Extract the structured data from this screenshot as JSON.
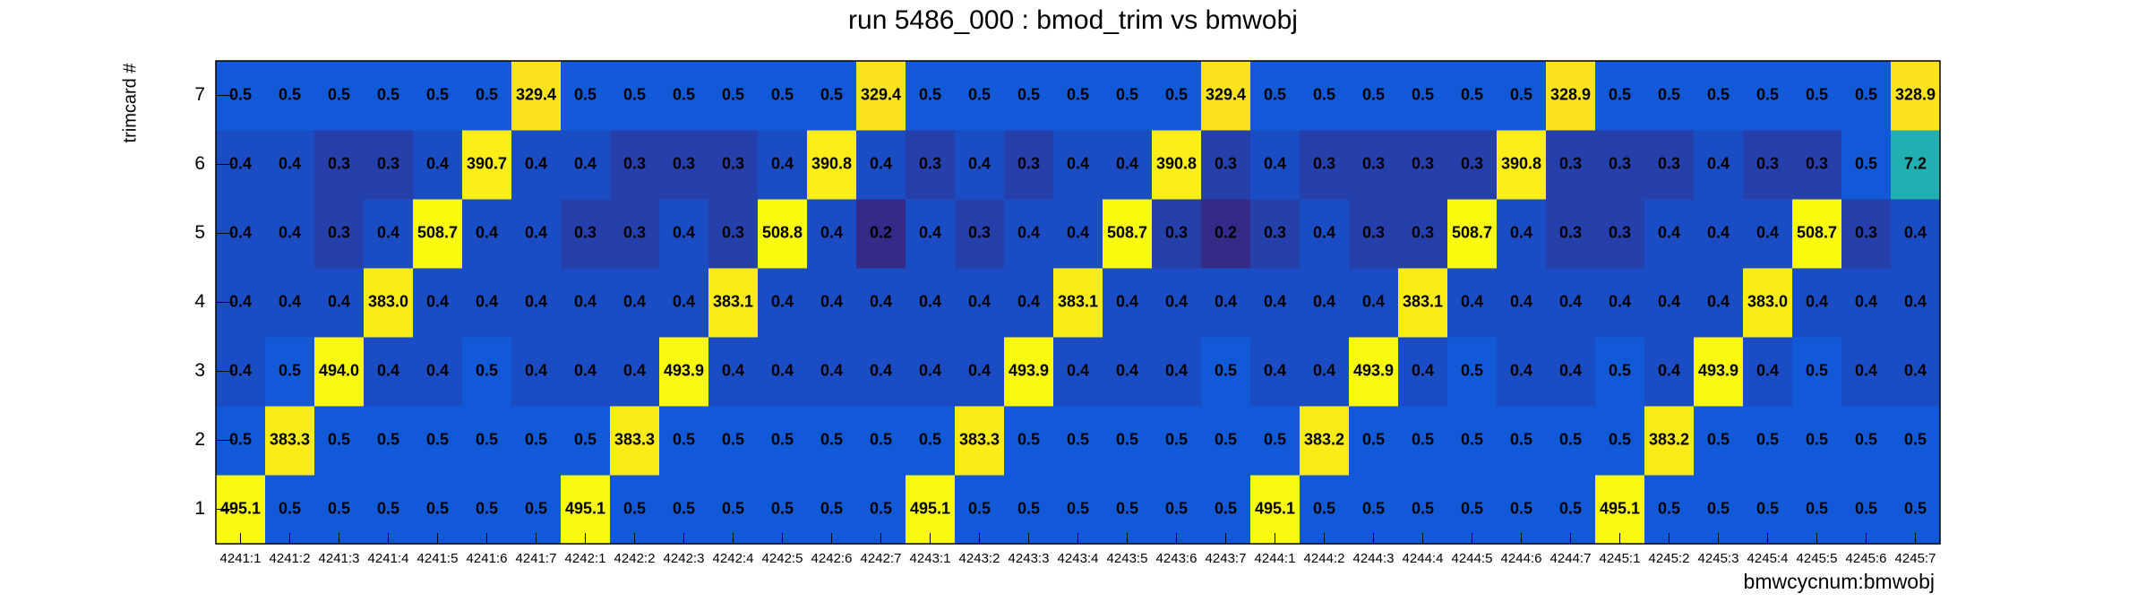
{
  "chart_data": {
    "type": "heatmap",
    "title": "run 5486_000 : bmod_trim vs bmwobj",
    "xlabel": "bmwcycnum:bmwobj",
    "ylabel": "trimcard #",
    "logz": true,
    "colormap": [
      "#352a87",
      "#0f5cdd",
      "#1481d4",
      "#06a4ca",
      "#2eb7a4",
      "#87bf77",
      "#d1bb59",
      "#fec832",
      "#f9fb0e"
    ],
    "categories": [
      "4241:1",
      "4241:2",
      "4241:3",
      "4241:4",
      "4241:5",
      "4241:6",
      "4241:7",
      "4242:1",
      "4242:2",
      "4242:3",
      "4242:4",
      "4242:5",
      "4242:6",
      "4242:7",
      "4243:1",
      "4243:2",
      "4243:3",
      "4243:4",
      "4243:5",
      "4243:6",
      "4243:7",
      "4244:1",
      "4244:2",
      "4244:3",
      "4244:4",
      "4244:5",
      "4244:6",
      "4244:7",
      "4245:1",
      "4245:2",
      "4245:3",
      "4245:4",
      "4245:5",
      "4245:6",
      "4245:7"
    ],
    "y": [
      1,
      2,
      3,
      4,
      5,
      6,
      7
    ],
    "values": [
      [
        495.1,
        0.5,
        0.5,
        0.5,
        0.5,
        0.5,
        0.5,
        495.1,
        0.5,
        0.5,
        0.5,
        0.5,
        0.5,
        0.5,
        495.1,
        0.5,
        0.5,
        0.5,
        0.5,
        0.5,
        0.5,
        495.1,
        0.5,
        0.5,
        0.5,
        0.5,
        0.5,
        0.5,
        495.1,
        0.5,
        0.5,
        0.5,
        0.5,
        0.5,
        0.5
      ],
      [
        0.5,
        383.3,
        0.5,
        0.5,
        0.5,
        0.5,
        0.5,
        0.5,
        383.3,
        0.5,
        0.5,
        0.5,
        0.5,
        0.5,
        0.5,
        383.3,
        0.5,
        0.5,
        0.5,
        0.5,
        0.5,
        0.5,
        383.2,
        0.5,
        0.5,
        0.5,
        0.5,
        0.5,
        0.5,
        383.2,
        0.5,
        0.5,
        0.5,
        0.5,
        0.5
      ],
      [
        0.4,
        0.5,
        494.0,
        0.4,
        0.4,
        0.5,
        0.4,
        0.4,
        0.4,
        493.9,
        0.4,
        0.4,
        0.4,
        0.4,
        0.4,
        0.4,
        493.9,
        0.4,
        0.4,
        0.4,
        0.5,
        0.4,
        0.4,
        493.9,
        0.4,
        0.5,
        0.4,
        0.4,
        0.5,
        0.4,
        493.9,
        0.4,
        0.5,
        0.4,
        0.4
      ],
      [
        0.4,
        0.4,
        0.4,
        383.0,
        0.4,
        0.4,
        0.4,
        0.4,
        0.4,
        0.4,
        383.1,
        0.4,
        0.4,
        0.4,
        0.4,
        0.4,
        0.4,
        383.1,
        0.4,
        0.4,
        0.4,
        0.4,
        0.4,
        0.4,
        383.1,
        0.4,
        0.4,
        0.4,
        0.4,
        0.4,
        0.4,
        383.0,
        0.4,
        0.4,
        0.4
      ],
      [
        0.4,
        0.4,
        0.3,
        0.4,
        508.7,
        0.4,
        0.4,
        0.3,
        0.3,
        0.4,
        0.3,
        508.8,
        0.4,
        0.2,
        0.4,
        0.3,
        0.4,
        0.4,
        508.7,
        0.3,
        0.2,
        0.3,
        0.4,
        0.3,
        0.3,
        508.7,
        0.4,
        0.3,
        0.3,
        0.4,
        0.4,
        0.4,
        508.7,
        0.3,
        0.4
      ],
      [
        0.4,
        0.4,
        0.3,
        0.3,
        0.4,
        390.7,
        0.4,
        0.4,
        0.3,
        0.3,
        0.3,
        0.4,
        390.8,
        0.4,
        0.3,
        0.4,
        0.3,
        0.4,
        0.4,
        390.8,
        0.3,
        0.4,
        0.3,
        0.3,
        0.3,
        0.3,
        390.8,
        0.3,
        0.3,
        0.3,
        0.4,
        0.3,
        0.3,
        0.5,
        7.2
      ],
      [
        0.5,
        0.5,
        0.5,
        0.5,
        0.5,
        0.5,
        329.4,
        0.5,
        0.5,
        0.5,
        0.5,
        0.5,
        0.5,
        329.4,
        0.5,
        0.5,
        0.5,
        0.5,
        0.5,
        0.5,
        329.4,
        0.5,
        0.5,
        0.5,
        0.5,
        0.5,
        0.5,
        328.9,
        0.5,
        0.5,
        0.5,
        0.5,
        0.5,
        0.5,
        328.9
      ]
    ],
    "value_labels": [
      [
        "495.1",
        "0.5",
        "0.5",
        "0.5",
        "0.5",
        "0.5",
        "0.5",
        "495.1",
        "0.5",
        "0.5",
        "0.5",
        "0.5",
        "0.5",
        "0.5",
        "495.1",
        "0.5",
        "0.5",
        "0.5",
        "0.5",
        "0.5",
        "0.5",
        "495.1",
        "0.5",
        "0.5",
        "0.5",
        "0.5",
        "0.5",
        "0.5",
        "495.1",
        "0.5",
        "0.5",
        "0.5",
        "0.5",
        "0.5",
        "0.5"
      ],
      [
        "0.5",
        "383.3",
        "0.5",
        "0.5",
        "0.5",
        "0.5",
        "0.5",
        "0.5",
        "383.3",
        "0.5",
        "0.5",
        "0.5",
        "0.5",
        "0.5",
        "0.5",
        "383.3",
        "0.5",
        "0.5",
        "0.5",
        "0.5",
        "0.5",
        "0.5",
        "383.2",
        "0.5",
        "0.5",
        "0.5",
        "0.5",
        "0.5",
        "0.5",
        "383.2",
        "0.5",
        "0.5",
        "0.5",
        "0.5",
        "0.5"
      ],
      [
        "0.4",
        "0.5",
        "494.0",
        "0.4",
        "0.4",
        "0.5",
        "0.4",
        "0.4",
        "0.4",
        "493.9",
        "0.4",
        "0.4",
        "0.4",
        "0.4",
        "0.4",
        "0.4",
        "493.9",
        "0.4",
        "0.4",
        "0.4",
        "0.5",
        "0.4",
        "0.4",
        "493.9",
        "0.4",
        "0.5",
        "0.4",
        "0.4",
        "0.5",
        "0.4",
        "493.9",
        "0.4",
        "0.5",
        "0.4",
        "0.4"
      ],
      [
        "0.4",
        "0.4",
        "0.4",
        "383.0",
        "0.4",
        "0.4",
        "0.4",
        "0.4",
        "0.4",
        "0.4",
        "383.1",
        "0.4",
        "0.4",
        "0.4",
        "0.4",
        "0.4",
        "0.4",
        "383.1",
        "0.4",
        "0.4",
        "0.4",
        "0.4",
        "0.4",
        "0.4",
        "383.1",
        "0.4",
        "0.4",
        "0.4",
        "0.4",
        "0.4",
        "0.4",
        "383.0",
        "0.4",
        "0.4",
        "0.4"
      ],
      [
        "0.4",
        "0.4",
        "0.3",
        "0.4",
        "508.7",
        "0.4",
        "0.4",
        "0.3",
        "0.3",
        "0.4",
        "0.3",
        "508.8",
        "0.4",
        "0.2",
        "0.4",
        "0.3",
        "0.4",
        "0.4",
        "508.7",
        "0.3",
        "0.2",
        "0.3",
        "0.4",
        "0.3",
        "0.3",
        "508.7",
        "0.4",
        "0.3",
        "0.3",
        "0.4",
        "0.4",
        "0.4",
        "508.7",
        "0.3",
        "0.4"
      ],
      [
        "0.4",
        "0.4",
        "0.3",
        "0.3",
        "0.4",
        "390.7",
        "0.4",
        "0.4",
        "0.3",
        "0.3",
        "0.3",
        "0.4",
        "390.8",
        "0.4",
        "0.3",
        "0.4",
        "0.3",
        "0.4",
        "0.4",
        "390.8",
        "0.3",
        "0.4",
        "0.3",
        "0.3",
        "0.3",
        "0.3",
        "390.8",
        "0.3",
        "0.3",
        "0.3",
        "0.4",
        "0.3",
        "0.3",
        "0.5",
        "7.2"
      ],
      [
        "0.5",
        "0.5",
        "0.5",
        "0.5",
        "0.5",
        "0.5",
        "329.4",
        "0.5",
        "0.5",
        "0.5",
        "0.5",
        "0.5",
        "0.5",
        "329.4",
        "0.5",
        "0.5",
        "0.5",
        "0.5",
        "0.5",
        "0.5",
        "329.4",
        "0.5",
        "0.5",
        "0.5",
        "0.5",
        "0.5",
        "0.5",
        "328.9",
        "0.5",
        "0.5",
        "0.5",
        "0.5",
        "0.5",
        "0.5",
        "328.9"
      ]
    ]
  }
}
